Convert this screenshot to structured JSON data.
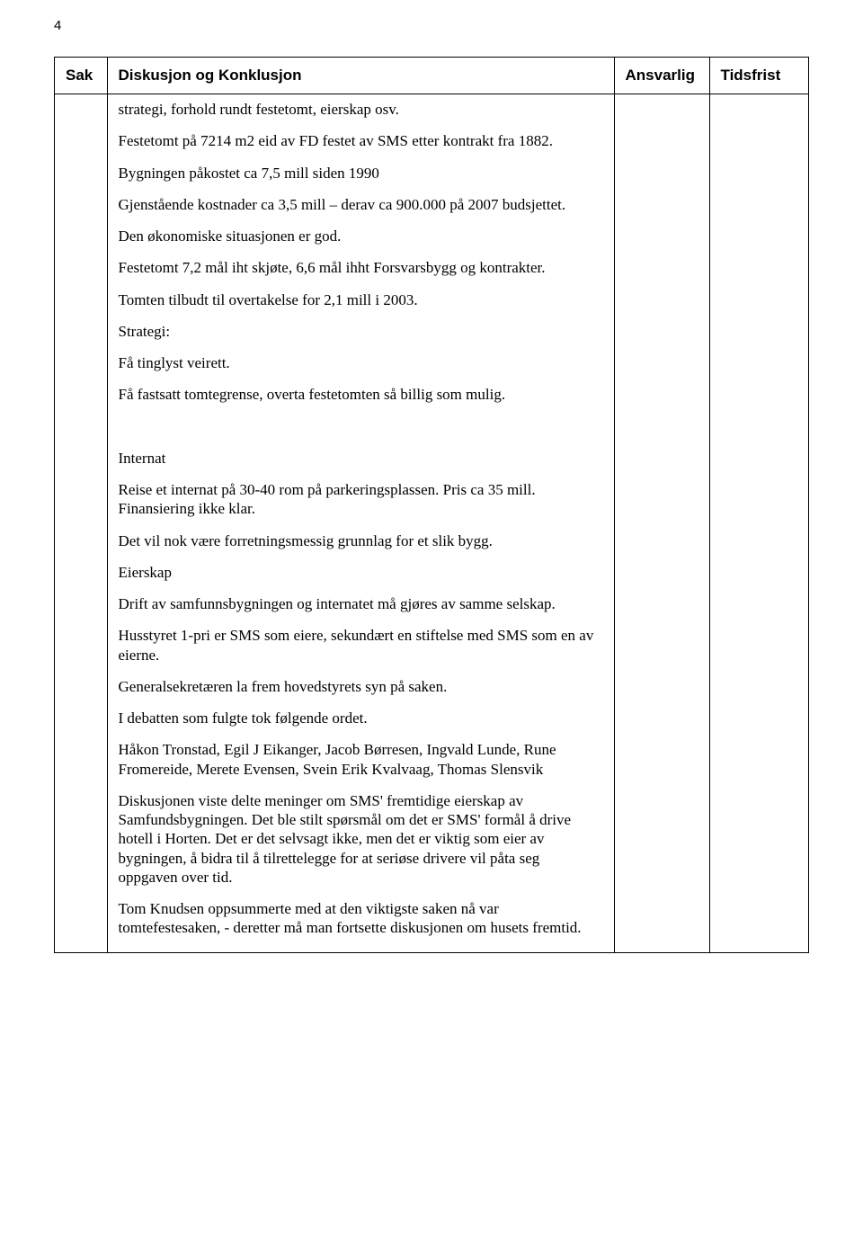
{
  "page_number": "4",
  "table": {
    "headers": {
      "sak": "Sak",
      "diskusjon": "Diskusjon og Konklusjon",
      "ansvarlig": "Ansvarlig",
      "tidsfrist": "Tidsfrist"
    },
    "row": {
      "sak": "",
      "ansvarlig": "",
      "tidsfrist": "",
      "paragraphs": [
        "strategi, forhold rundt festetomt, eierskap osv.",
        "Festetomt på 7214 m2 eid av FD festet av SMS etter kontrakt fra 1882.",
        "Bygningen påkostet ca 7,5 mill siden 1990",
        "Gjenstående kostnader ca 3,5 mill – derav ca 900.000 på 2007 budsjettet.",
        "Den økonomiske situasjonen er god.",
        "Festetomt 7,2 mål iht skjøte, 6,6 mål ihht Forsvarsbygg og kontrakter.",
        "Tomten tilbudt til overtakelse for 2,1 mill i 2003.",
        "Strategi:",
        "Få tinglyst veirett.",
        "Få fastsatt tomtegrense, overta festetomten så billig som mulig.",
        "",
        "Internat",
        "Reise et internat på 30-40 rom på parkeringsplassen. Pris ca 35 mill. Finansiering ikke klar.",
        "Det vil nok være forretningsmessig grunnlag for et slik bygg.",
        "Eierskap",
        "Drift av samfunnsbygningen og internatet må gjøres av samme selskap.",
        "Husstyret 1-pri er SMS som eiere, sekundært en stiftelse med SMS som en av eierne.",
        "Generalsekretæren la frem hovedstyrets syn på saken.",
        "I debatten som fulgte tok følgende ordet.",
        "Håkon Tronstad, Egil J Eikanger, Jacob Børresen, Ingvald Lunde, Rune Fromereide, Merete Evensen, Svein Erik Kvalvaag, Thomas Slensvik",
        "Diskusjonen viste delte meninger om SMS' fremtidige eierskap av Samfundsbygningen. Det ble stilt spørsmål om det er SMS' formål å drive hotell i Horten. Det er det selvsagt ikke, men det er viktig som eier av bygningen, å bidra til å tilrettelegge for at seriøse drivere vil påta seg oppgaven over tid.",
        "Tom Knudsen oppsummerte med at den viktigste saken nå var tomtefestesaken, - deretter må man fortsette diskusjonen om husets fremtid."
      ]
    }
  }
}
